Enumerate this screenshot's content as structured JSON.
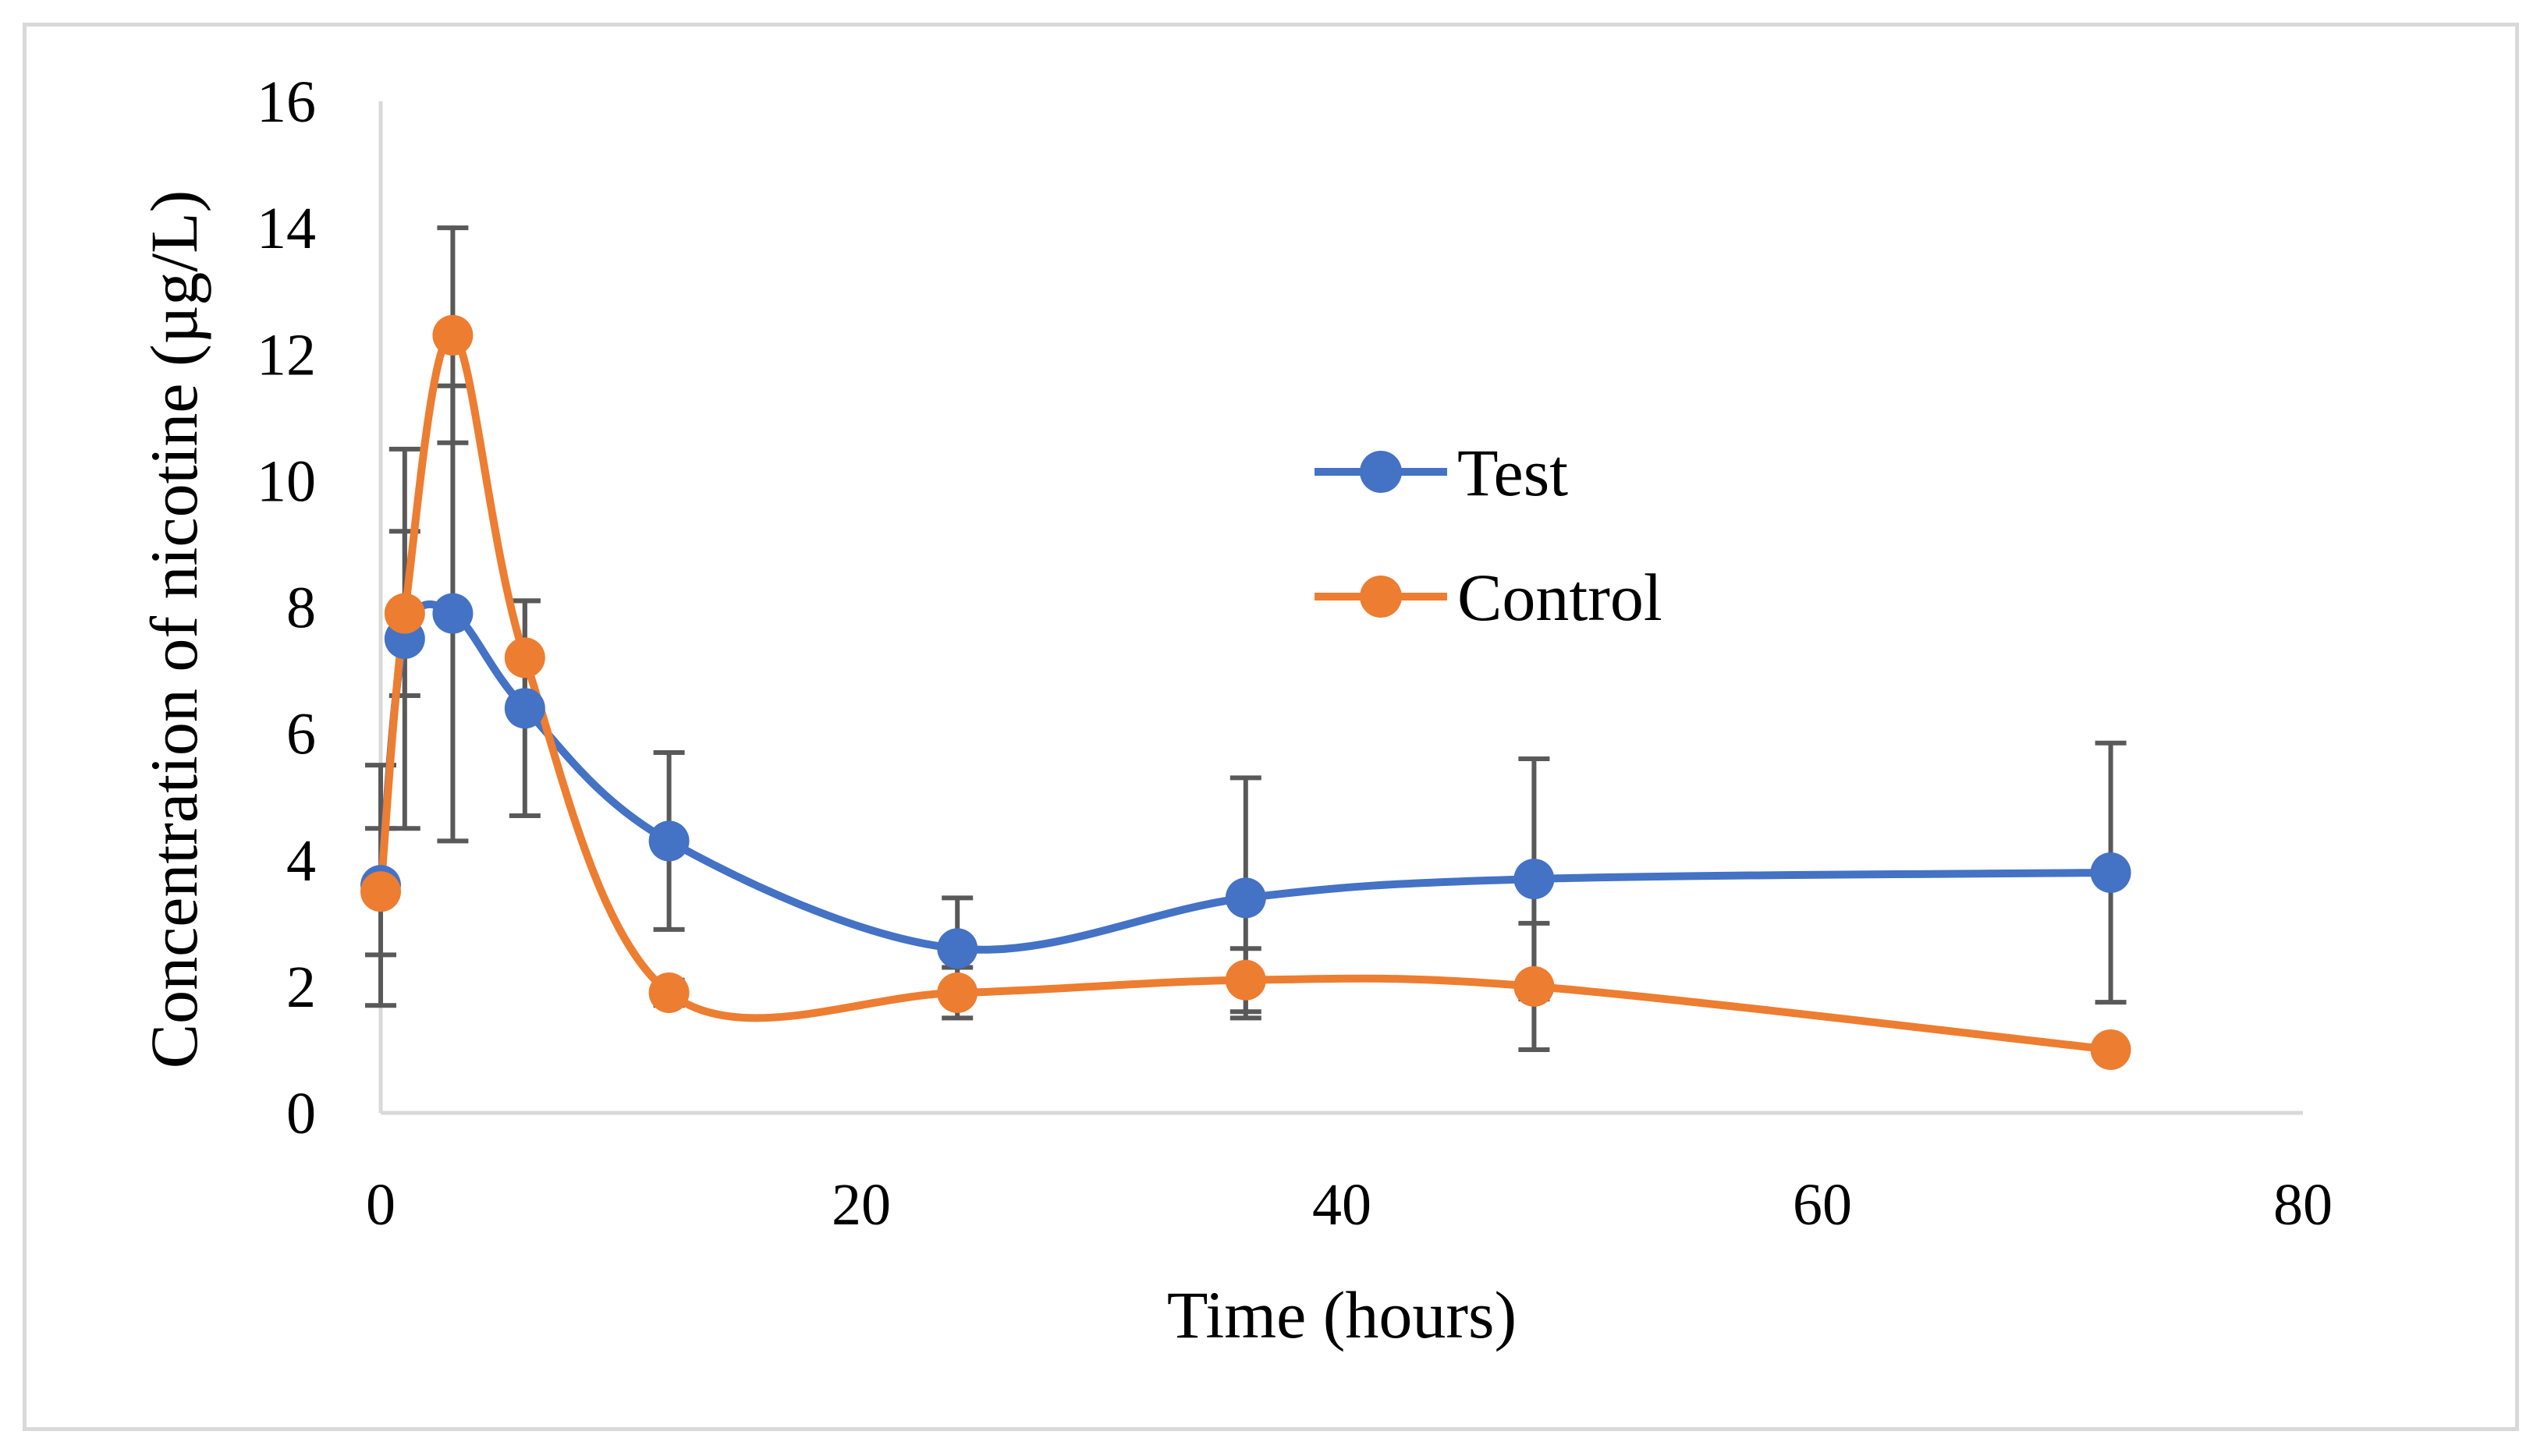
{
  "chart_data": {
    "type": "line",
    "title": "",
    "xlabel": "Time (hours)",
    "ylabel": "Concentration of nicotine (µg/L)",
    "xlim": [
      0,
      80
    ],
    "ylim": [
      0,
      16
    ],
    "x_ticks": [
      0,
      20,
      40,
      60,
      80
    ],
    "y_ticks": [
      0,
      2,
      4,
      6,
      8,
      10,
      12,
      14,
      16
    ],
    "x_tick_labels": [
      "0",
      "20",
      "40",
      "60",
      "80"
    ],
    "y_tick_labels": [
      "0",
      "2",
      "4",
      "6",
      "8",
      "10",
      "12",
      "14",
      "16"
    ],
    "grid": false,
    "smooth": true,
    "legend_position": "center-right",
    "error_bar_color": "#595959",
    "series": [
      {
        "name": "Test",
        "color": "#4472C4",
        "x": [
          0,
          1,
          3,
          6,
          12,
          24,
          36,
          48,
          72
        ],
        "values": [
          3.6,
          7.5,
          7.9,
          6.4,
          4.3,
          2.6,
          3.4,
          3.7,
          3.8
        ],
        "error": [
          1.9,
          3.0,
          3.6,
          1.7,
          1.4,
          0.8,
          1.9,
          1.9,
          2.05
        ]
      },
      {
        "name": "Control",
        "color": "#ED7D31",
        "x": [
          0,
          1,
          3,
          6,
          12,
          24,
          36,
          48,
          72
        ],
        "values": [
          3.5,
          7.9,
          12.3,
          7.2,
          1.9,
          1.9,
          2.1,
          2.0,
          1.0
        ],
        "error": [
          1.0,
          1.3,
          1.7,
          0.9,
          0.2,
          0.4,
          0.5,
          1.0,
          0.0
        ]
      }
    ]
  }
}
